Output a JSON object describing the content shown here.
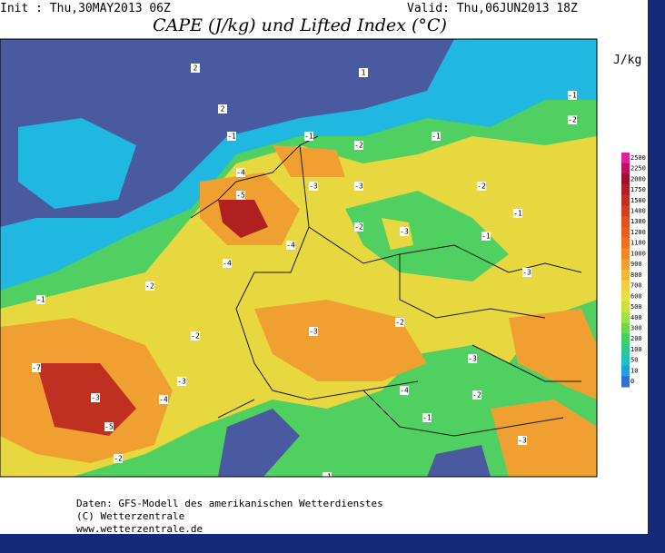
{
  "header": {
    "init": "Init : Thu,30MAY2013 06Z",
    "valid": "Valid: Thu,06JUN2013 18Z",
    "title": "CAPE (J/kg) und Lifted Index (°C)"
  },
  "legend": {
    "unit": "J/kg",
    "levels": [
      2500,
      2250,
      2000,
      1750,
      1500,
      1400,
      1300,
      1200,
      1100,
      1000,
      900,
      800,
      700,
      600,
      500,
      400,
      300,
      200,
      100,
      50,
      10,
      0
    ],
    "colors": [
      "#e020a0",
      "#c01060",
      "#a01030",
      "#b02020",
      "#c03020",
      "#d04020",
      "#e05020",
      "#e86020",
      "#f07020",
      "#f08828",
      "#f0a030",
      "#f0b838",
      "#f0d040",
      "#e8e040",
      "#c8e040",
      "#a0e040",
      "#70d850",
      "#40d060",
      "#30c890",
      "#20c0c0",
      "#20a0e0",
      "#3070d0"
    ]
  },
  "contour_labels": [
    2,
    2,
    1,
    -1,
    -1,
    -2,
    -1,
    -3,
    -4,
    -5,
    -4,
    -3,
    -2,
    -1,
    -3,
    -2,
    -1,
    -1,
    -2,
    -3,
    -7,
    -5,
    -3,
    -4,
    -2,
    -3,
    -2,
    -1,
    -3,
    -2,
    -4,
    -3,
    -2,
    -1,
    -3,
    -4,
    -2,
    -1
  ],
  "footer": {
    "line1": "Daten: GFS-Modell des amerikanischen Wetterdienstes",
    "line2": "(C) Wetterzentrale",
    "line3": "www.wetterzentrale.de"
  }
}
